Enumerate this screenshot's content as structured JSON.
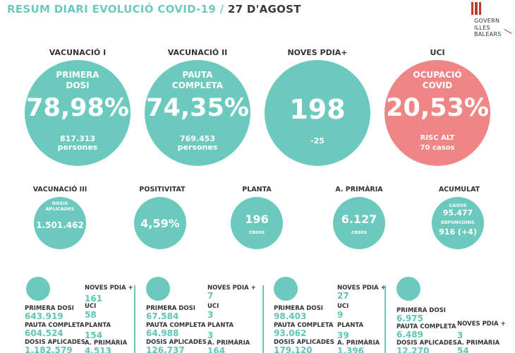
{
  "header": {
    "title": "RESUM DIARI EVOLUCIÓ COVID-19 / ",
    "date": "27 D'AGOST"
  },
  "logo": {
    "line1": "GOVERN",
    "line2": "ILLES",
    "line3": "BALEARS"
  },
  "colors": {
    "teal": "#6cc9bd",
    "red": "#f08585",
    "dark": "#3a3a3a"
  },
  "top": [
    {
      "title": "VACUNACIÓ I",
      "sub1": "PRIMERA",
      "sub2": "DOSI",
      "value": "78,98%",
      "detail1": "817.313",
      "detail2": "persones"
    },
    {
      "title": "VACUNACIÓ II",
      "sub1": "PAUTA",
      "sub2": "COMPLETA",
      "value": "74,35%",
      "detail1": "769.453",
      "detail2": "persones"
    },
    {
      "title": "NOVES PDIA+",
      "value": "198",
      "detail1": "-25"
    },
    {
      "title": "UCI",
      "sub1": "OCUPACIÓ",
      "sub2": "COVID",
      "value": "20,53%",
      "detail1": "RISC ALT",
      "detail2": "70 casos"
    }
  ],
  "middle": [
    {
      "title": "VACUNACIÓ III",
      "sub1": "DOSIS",
      "sub2": "APLICADES",
      "value": "1.501.462"
    },
    {
      "title": "POSITIVITAT",
      "value": "4,59%"
    },
    {
      "title": "PLANTA",
      "value": "196",
      "detail": "casos"
    },
    {
      "title": "A. PRIMÀRIA",
      "value": "6.127",
      "detail": "casos"
    },
    {
      "title": "ACUMULAT",
      "l1": "CASOS",
      "v1": "95.477",
      "l2": "DEFUNCIONS",
      "v2": "916 (+4)"
    }
  ],
  "regions": [
    {
      "island_icon": "mallorca-icon",
      "primera_label": "PRIMERA DOSI",
      "primera": "643.919",
      "pauta_label": "PAUTA COMPLETA",
      "pauta": "604.524",
      "dosis_label": "DOSIS APLICADES",
      "dosis": "1.182.579",
      "noves_label": "NOVES PDIA +",
      "noves": "161",
      "uci_label": "UCI",
      "uci": "58",
      "planta_label": "PLANTA",
      "planta": "154",
      "aprim_label": "A. PRIMÀRIA",
      "aprim": "4.513"
    },
    {
      "island_icon": "menorca-icon",
      "primera_label": "PRIMERA DOSI",
      "primera": "67.584",
      "pauta_label": "PAUTA COMPLETA",
      "pauta": "64.988",
      "dosis_label": "DOSIS APLICADES",
      "dosis": "126.737",
      "noves_label": "NOVES PDIA +",
      "noves": "7",
      "uci_label": "UCI",
      "uci": "3",
      "planta_label": "PLANTA",
      "planta": "3",
      "aprim_label": "A. PRIMÀRIA",
      "aprim": "164"
    },
    {
      "island_icon": "eivissa-icon",
      "primera_label": "PRIMERA DOSI",
      "primera": "98.403",
      "pauta_label": "PAUTA COMPLETA",
      "pauta": "93.062",
      "dosis_label": "DOSIS APLICADES",
      "dosis": "179.120",
      "noves_label": "NOVES PDIA +",
      "noves": "27",
      "uci_label": "UCI",
      "uci": "9",
      "planta_label": "PLANTA",
      "planta": "39",
      "aprim_label": "A. PRIMÀRIA",
      "aprim": "1.396"
    },
    {
      "island_icon": "formentera-icon",
      "primera_label": "PRIMERA DOSI",
      "primera": "6.975",
      "pauta_label": "PAUTA COMPLETA",
      "pauta": "6.489",
      "dosis_label": "DOSIS APLICADES",
      "dosis": "12.270",
      "noves_label": "NOVES PDIA +",
      "noves": "3",
      "aprim_label": "A. PRIMÀRIA",
      "aprim": "54"
    }
  ]
}
